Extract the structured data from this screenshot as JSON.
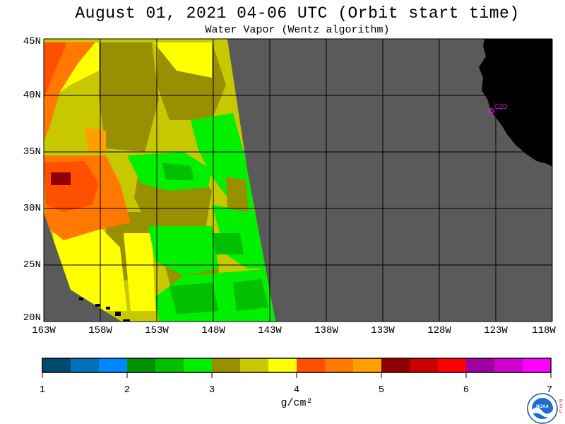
{
  "title": "August 01, 2021  04-06 UTC  (Orbit start time)",
  "subtitle": "Water Vapor (Wentz algorithm)",
  "lat_labels": [
    "45N",
    "40N",
    "35N",
    "30N",
    "25N",
    "20N"
  ],
  "lon_labels": [
    "163W",
    "158W",
    "153W",
    "148W",
    "143W",
    "138W",
    "133W",
    "128W",
    "123W",
    "118W"
  ],
  "station": "CZD",
  "colorbar": {
    "labels": [
      "1",
      "2",
      "3",
      "4",
      "5",
      "6",
      "7"
    ],
    "units": "g/cm²",
    "colors": [
      "#004a70",
      "#0070b8",
      "#0088ff",
      "#009000",
      "#00c000",
      "#00f000",
      "#989000",
      "#c8c800",
      "#ffff00",
      "#ff5000",
      "#ff7800",
      "#ffa000",
      "#900000",
      "#c80000",
      "#ff0000",
      "#a000a0",
      "#d000d0",
      "#ff00ff"
    ]
  },
  "colors": {
    "no_data": "#5a5a5a",
    "land": "#000000"
  },
  "logo_text": "NOAA",
  "psl_text": "PSL"
}
